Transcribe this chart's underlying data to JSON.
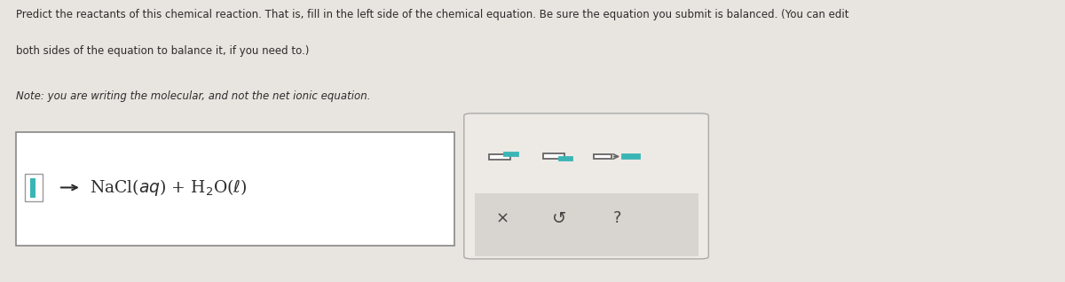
{
  "bg_color": "#e8e4df",
  "title_text1": "Predict the reactants of this chemical reaction. That is, fill in the left side of the chemical equation. Be sure the equation you submit is balanced. (You can edit",
  "title_text2": "both sides of the equation to balance it, if you need to.)",
  "note_text": "Note: you are writing the molecular, and not the net ionic equation.",
  "text_color": "#2c2c2c",
  "border_color": "#888888",
  "toolbar_bg": "#d8d5d0",
  "toolbar_top_bg": "#edeae5",
  "teal_color": "#3ab5b5",
  "icon_color": "#555555",
  "white": "#ffffff",
  "gray_icon": "#666666",
  "bottom_icon_color": "#444444"
}
